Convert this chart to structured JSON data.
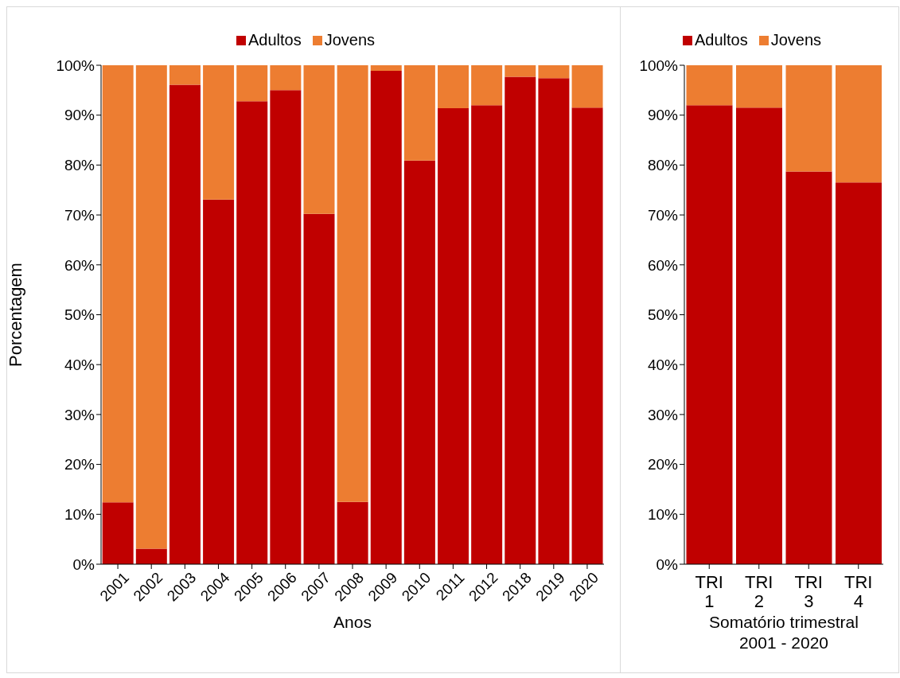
{
  "chart_data": [
    {
      "type": "bar",
      "stacked": true,
      "ylabel": "Porcentagem",
      "xlabel": "Anos",
      "legend": "top",
      "grid": false,
      "categories": [
        "2001",
        "2002",
        "2003",
        "2004",
        "2005",
        "2006",
        "2007",
        "2008",
        "2009",
        "2010",
        "2011",
        "2012",
        "2018",
        "2019",
        "2020"
      ],
      "series": [
        {
          "name": "Adultos",
          "color": "#c00000",
          "values": [
            12.4,
            3.1,
            96.1,
            73.1,
            92.8,
            95.0,
            70.2,
            12.5,
            98.9,
            80.9,
            91.4,
            92.0,
            97.7,
            97.4,
            91.5
          ]
        },
        {
          "name": "Jovens",
          "color": "#ed7d31",
          "values": [
            87.6,
            96.9,
            3.9,
            26.9,
            7.2,
            5.0,
            29.8,
            87.5,
            1.1,
            19.1,
            8.6,
            8.0,
            2.3,
            2.6,
            8.5
          ]
        }
      ],
      "ylim": [
        0,
        100
      ],
      "yticks": [
        {
          "value": 0,
          "label": "0%"
        },
        {
          "value": 10,
          "label": "10%"
        },
        {
          "value": 20,
          "label": "20%"
        },
        {
          "value": 30,
          "label": "30%"
        },
        {
          "value": 40,
          "label": "40%"
        },
        {
          "value": 50,
          "label": "50%"
        },
        {
          "value": 60,
          "label": "60%"
        },
        {
          "value": 70,
          "label": "70%"
        },
        {
          "value": 80,
          "label": "80%"
        },
        {
          "value": 90,
          "label": "90%"
        },
        {
          "value": 100,
          "label": "100%"
        }
      ]
    },
    {
      "type": "bar",
      "stacked": true,
      "xlabel": "Somatório trimestral 2001 - 2020",
      "legend": "top",
      "grid": false,
      "categories": [
        "TRI 1",
        "TRI 2",
        "TRI 3",
        "TRI 4"
      ],
      "series": [
        {
          "name": "Adultos",
          "color": "#c00000",
          "values": [
            92.0,
            91.5,
            78.7,
            76.5
          ]
        },
        {
          "name": "Jovens",
          "color": "#ed7d31",
          "values": [
            8.0,
            8.5,
            21.3,
            23.5
          ]
        }
      ],
      "ylim": [
        0,
        100
      ],
      "yticks": [
        {
          "value": 0,
          "label": "0%"
        },
        {
          "value": 10,
          "label": "10%"
        },
        {
          "value": 20,
          "label": "20%"
        },
        {
          "value": 30,
          "label": "30%"
        },
        {
          "value": 40,
          "label": "40%"
        },
        {
          "value": 50,
          "label": "50%"
        },
        {
          "value": 60,
          "label": "60%"
        },
        {
          "value": 70,
          "label": "70%"
        },
        {
          "value": 80,
          "label": "80%"
        },
        {
          "value": 90,
          "label": "90%"
        },
        {
          "value": 100,
          "label": "100%"
        }
      ]
    }
  ]
}
